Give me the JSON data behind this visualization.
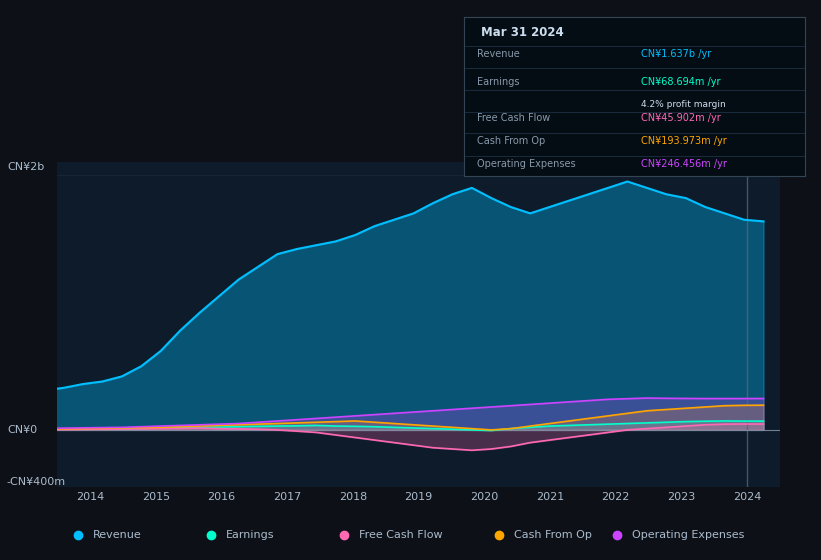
{
  "background_color": "#0d1117",
  "plot_bg_color": "#0d1b2a",
  "colors": {
    "Revenue": "#00bfff",
    "Earnings": "#00ffcc",
    "Free Cash Flow": "#ff69b4",
    "Cash From Op": "#ffa500",
    "Operating Expenses": "#cc44ff"
  },
  "legend": [
    {
      "label": "Revenue",
      "color": "#00bfff"
    },
    {
      "label": "Earnings",
      "color": "#00ffcc"
    },
    {
      "label": "Free Cash Flow",
      "color": "#ff69b4"
    },
    {
      "label": "Cash From Op",
      "color": "#ffa500"
    },
    {
      "label": "Operating Expenses",
      "color": "#cc44ff"
    }
  ],
  "tooltip": {
    "date": "Mar 31 2024",
    "Revenue": {
      "value": "CN¥1.637b",
      "color": "#00bfff"
    },
    "Earnings": {
      "value": "CN¥68.694m",
      "color": "#00ffcc"
    },
    "profit_margin": "4.2%",
    "Free Cash Flow": {
      "value": "CN¥45.902m",
      "color": "#ff69b4"
    },
    "Cash From Op": {
      "value": "CN¥193.973m",
      "color": "#ffa500"
    },
    "Operating Expenses": {
      "value": "CN¥246.456m",
      "color": "#cc44ff"
    }
  },
  "Revenue": [
    300,
    310,
    330,
    360,
    380,
    420,
    500,
    620,
    780,
    920,
    1050,
    1180,
    1280,
    1380,
    1420,
    1450,
    1480,
    1530,
    1600,
    1650,
    1700,
    1780,
    1850,
    1900,
    1820,
    1750,
    1700,
    1750,
    1800,
    1850,
    1900,
    1950,
    1900,
    1850,
    1820,
    1750,
    1700,
    1650,
    1637
  ],
  "Earnings": [
    5,
    6,
    5,
    7,
    8,
    10,
    12,
    15,
    18,
    20,
    22,
    25,
    28,
    30,
    32,
    35,
    30,
    28,
    25,
    20,
    15,
    10,
    5,
    0,
    -5,
    10,
    20,
    30,
    35,
    40,
    45,
    50,
    55,
    60,
    65,
    68,
    70,
    69,
    68.694
  ],
  "Free Cash Flow": [
    2,
    3,
    2,
    4,
    5,
    6,
    8,
    10,
    12,
    14,
    10,
    8,
    5,
    0,
    -10,
    -20,
    -40,
    -60,
    -80,
    -100,
    -120,
    -140,
    -150,
    -160,
    -150,
    -130,
    -100,
    -80,
    -60,
    -40,
    -20,
    0,
    10,
    20,
    30,
    40,
    45,
    46,
    45.902
  ],
  "Cash From Op": [
    5,
    6,
    8,
    10,
    12,
    15,
    18,
    20,
    25,
    30,
    35,
    40,
    45,
    50,
    55,
    60,
    65,
    70,
    60,
    50,
    40,
    30,
    20,
    10,
    0,
    10,
    30,
    50,
    70,
    90,
    110,
    130,
    150,
    160,
    170,
    180,
    190,
    193,
    193.973
  ],
  "Operating Expenses": [
    10,
    12,
    14,
    16,
    18,
    20,
    25,
    30,
    35,
    40,
    45,
    50,
    60,
    70,
    80,
    90,
    100,
    110,
    120,
    130,
    140,
    150,
    160,
    170,
    180,
    190,
    200,
    210,
    220,
    230,
    240,
    245,
    250,
    248,
    247,
    246,
    246,
    246,
    246.456
  ]
}
